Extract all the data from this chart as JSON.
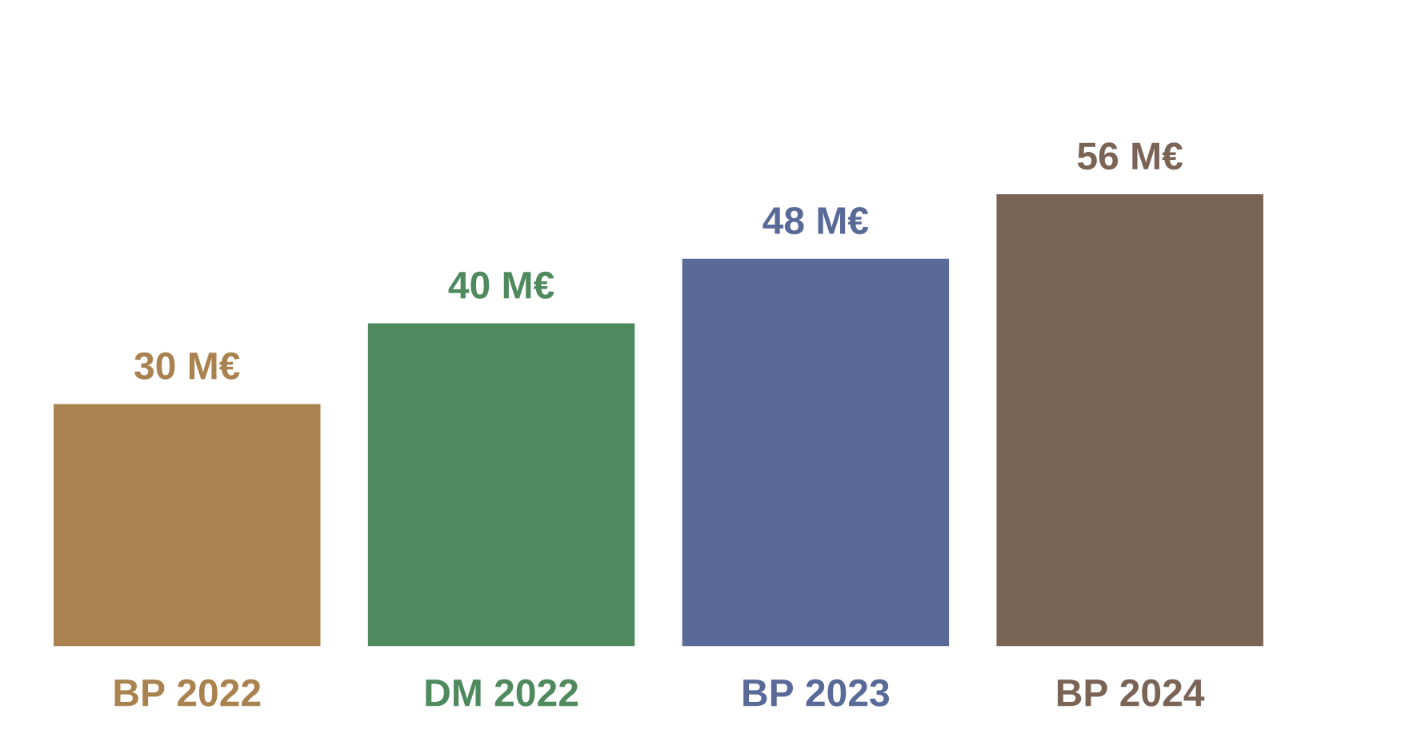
{
  "chart_data": {
    "type": "bar",
    "categories": [
      "BP 2022",
      "DM 2022",
      "BP 2023",
      "BP 2024"
    ],
    "values": [
      30,
      40,
      48,
      56
    ],
    "value_labels": [
      "30 M€",
      "40 M€",
      "48 M€",
      "56 M€"
    ],
    "colors": [
      "#a98250",
      "#4f8a5f",
      "#5a6a98",
      "#7a6456"
    ]
  }
}
